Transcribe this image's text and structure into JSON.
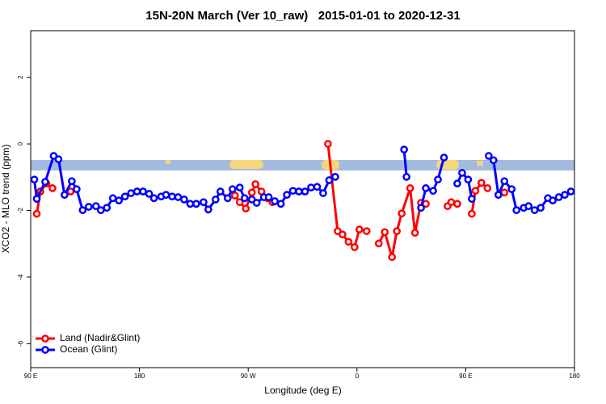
{
  "chart_data": {
    "type": "line",
    "title": "15N-20N March (Ver 10_raw)   2015-01-01 to 2020-12-31",
    "x_label": "Longitude (deg E)",
    "y_label": "XCO2 - MLO trend (ppm)",
    "xlim": [
      90,
      540
    ],
    "ylim": [
      -6.72,
      3.4
    ],
    "xticks": [
      {
        "value": 90,
        "label": "90 E"
      },
      180,
      {
        "value": 270,
        "label": "90 W"
      },
      {
        "value": 360,
        "label": "0"
      },
      {
        "value": 450,
        "label": "90 E"
      },
      {
        "value": 540,
        "label": "180"
      }
    ],
    "yticks": [
      -6,
      -4,
      -2,
      0,
      2
    ],
    "legend": "bottomleft",
    "series": [
      {
        "name": "Land (Nadir&Glint)",
        "color": "#ff0000",
        "x": [
          95,
          98,
          103,
          108,
          115,
          123,
          200,
          259,
          263,
          268,
          273,
          276,
          281,
          286,
          290,
          300,
          336,
          344,
          348,
          353,
          358,
          362,
          368,
          373,
          378,
          383,
          389,
          393,
          397,
          404,
          408,
          413,
          417,
          425,
          435,
          438,
          443,
          448,
          455,
          458,
          463,
          468,
          475,
          482
        ],
        "values": [
          -2.1,
          -1.43,
          -1.19,
          -1.33,
          null,
          -1.43,
          null,
          -1.55,
          -1.75,
          -1.94,
          -1.46,
          -1.21,
          -1.43,
          -1.63,
          -1.75,
          null,
          0,
          -2.62,
          -2.72,
          -2.94,
          -3.1,
          -2.57,
          -2.62,
          null,
          -2.99,
          -2.65,
          -3.4,
          -2.62,
          -2.09,
          -1.33,
          -2.67,
          -1.77,
          -1.8,
          null,
          -1.87,
          -1.75,
          -1.8,
          null,
          -2.1,
          -1.41,
          -1.17,
          -1.33,
          null,
          -1.46
        ]
      },
      {
        "name": "Ocean (Glint)",
        "color": "#0000ff",
        "x": [
          93,
          95,
          102,
          109,
          113,
          118,
          124,
          128,
          133,
          138,
          144,
          148,
          153,
          158,
          163,
          168,
          173,
          178,
          183,
          188,
          192,
          198,
          202,
          207,
          212,
          217,
          222,
          227,
          233,
          237,
          243,
          247,
          253,
          257,
          263,
          267,
          273,
          277,
          283,
          287,
          292,
          297,
          302,
          307,
          312,
          317,
          322,
          327,
          332,
          337,
          342,
          370,
          399,
          401,
          405,
          413,
          417,
          423,
          427,
          432,
          437,
          443,
          447,
          452,
          455,
          460,
          469,
          473,
          477,
          482,
          488,
          492,
          498,
          502,
          507,
          512,
          518,
          522,
          527,
          532,
          537
        ],
        "values": [
          -1.07,
          -1.65,
          -1.14,
          -0.36,
          -0.46,
          -1.53,
          -1.12,
          -1.36,
          -1.99,
          -1.89,
          -1.87,
          -1.99,
          -1.92,
          -1.63,
          -1.7,
          -1.58,
          -1.48,
          -1.43,
          -1.43,
          -1.5,
          -1.63,
          -1.58,
          -1.53,
          -1.58,
          -1.6,
          -1.67,
          -1.8,
          -1.8,
          -1.75,
          -1.97,
          -1.67,
          -1.43,
          -1.63,
          -1.36,
          -1.31,
          -1.63,
          -1.67,
          -1.77,
          -1.6,
          -1.6,
          -1.72,
          -1.8,
          -1.53,
          -1.41,
          -1.43,
          -1.43,
          -1.31,
          -1.29,
          -1.48,
          -1.09,
          -0.99,
          null,
          -0.17,
          -0.99,
          null,
          -1.92,
          -1.33,
          -1.41,
          -1.07,
          -0.41,
          null,
          -1.19,
          -0.87,
          -1.07,
          -1.65,
          null,
          -0.36,
          -0.49,
          -1.53,
          -1.12,
          -1.36,
          -1.99,
          -1.92,
          -1.87,
          -1.99,
          -1.92,
          -1.63,
          -1.7,
          -1.6,
          -1.53,
          -1.43
        ]
      }
    ]
  }
}
